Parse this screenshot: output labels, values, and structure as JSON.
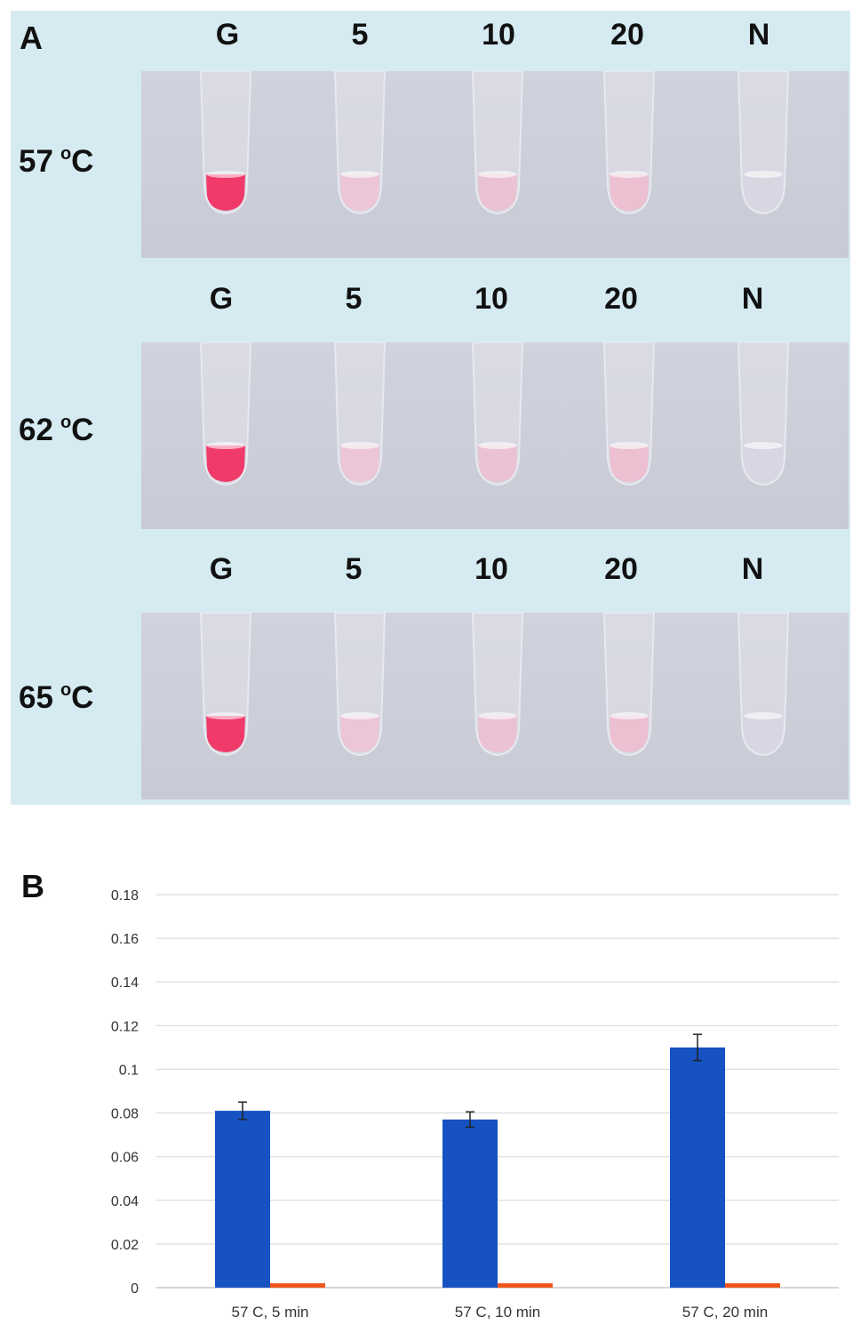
{
  "panel_a": {
    "letter": "A",
    "column_labels": [
      "G",
      "5",
      "10",
      "20",
      "N"
    ],
    "rows": [
      {
        "temp": "57",
        "unit": "C",
        "degree": "o"
      },
      {
        "temp": "62",
        "unit": "C",
        "degree": "o"
      },
      {
        "temp": "65",
        "unit": "C",
        "degree": "o"
      }
    ],
    "tube_colors": [
      "#f03a6a",
      "#ecc6d6",
      "#ebc2d3",
      "#ecbfd1",
      "#d9d6e4"
    ],
    "background_color": "#d5ebf1"
  },
  "panel_b": {
    "letter": "B"
  },
  "chart_data": {
    "type": "bar",
    "categories": [
      "57 C, 5 min",
      "57 C, 10 min",
      "57 C, 20 min"
    ],
    "series": [
      {
        "values": [
          0.081,
          0.077,
          0.11
        ],
        "errors": [
          0.004,
          0.0035,
          0.006
        ],
        "color": "#1652c1"
      },
      {
        "values": [
          0.002,
          0.002,
          0.002
        ],
        "color": "#f0561c"
      }
    ],
    "yticks": [
      "0",
      "0.02",
      "0.04",
      "0.06",
      "0.08",
      "0.1",
      "0.12",
      "0.14",
      "0.16",
      "0.18"
    ],
    "ylim": [
      0,
      0.18
    ],
    "grid": true,
    "title": "",
    "xlabel": "",
    "ylabel": ""
  }
}
